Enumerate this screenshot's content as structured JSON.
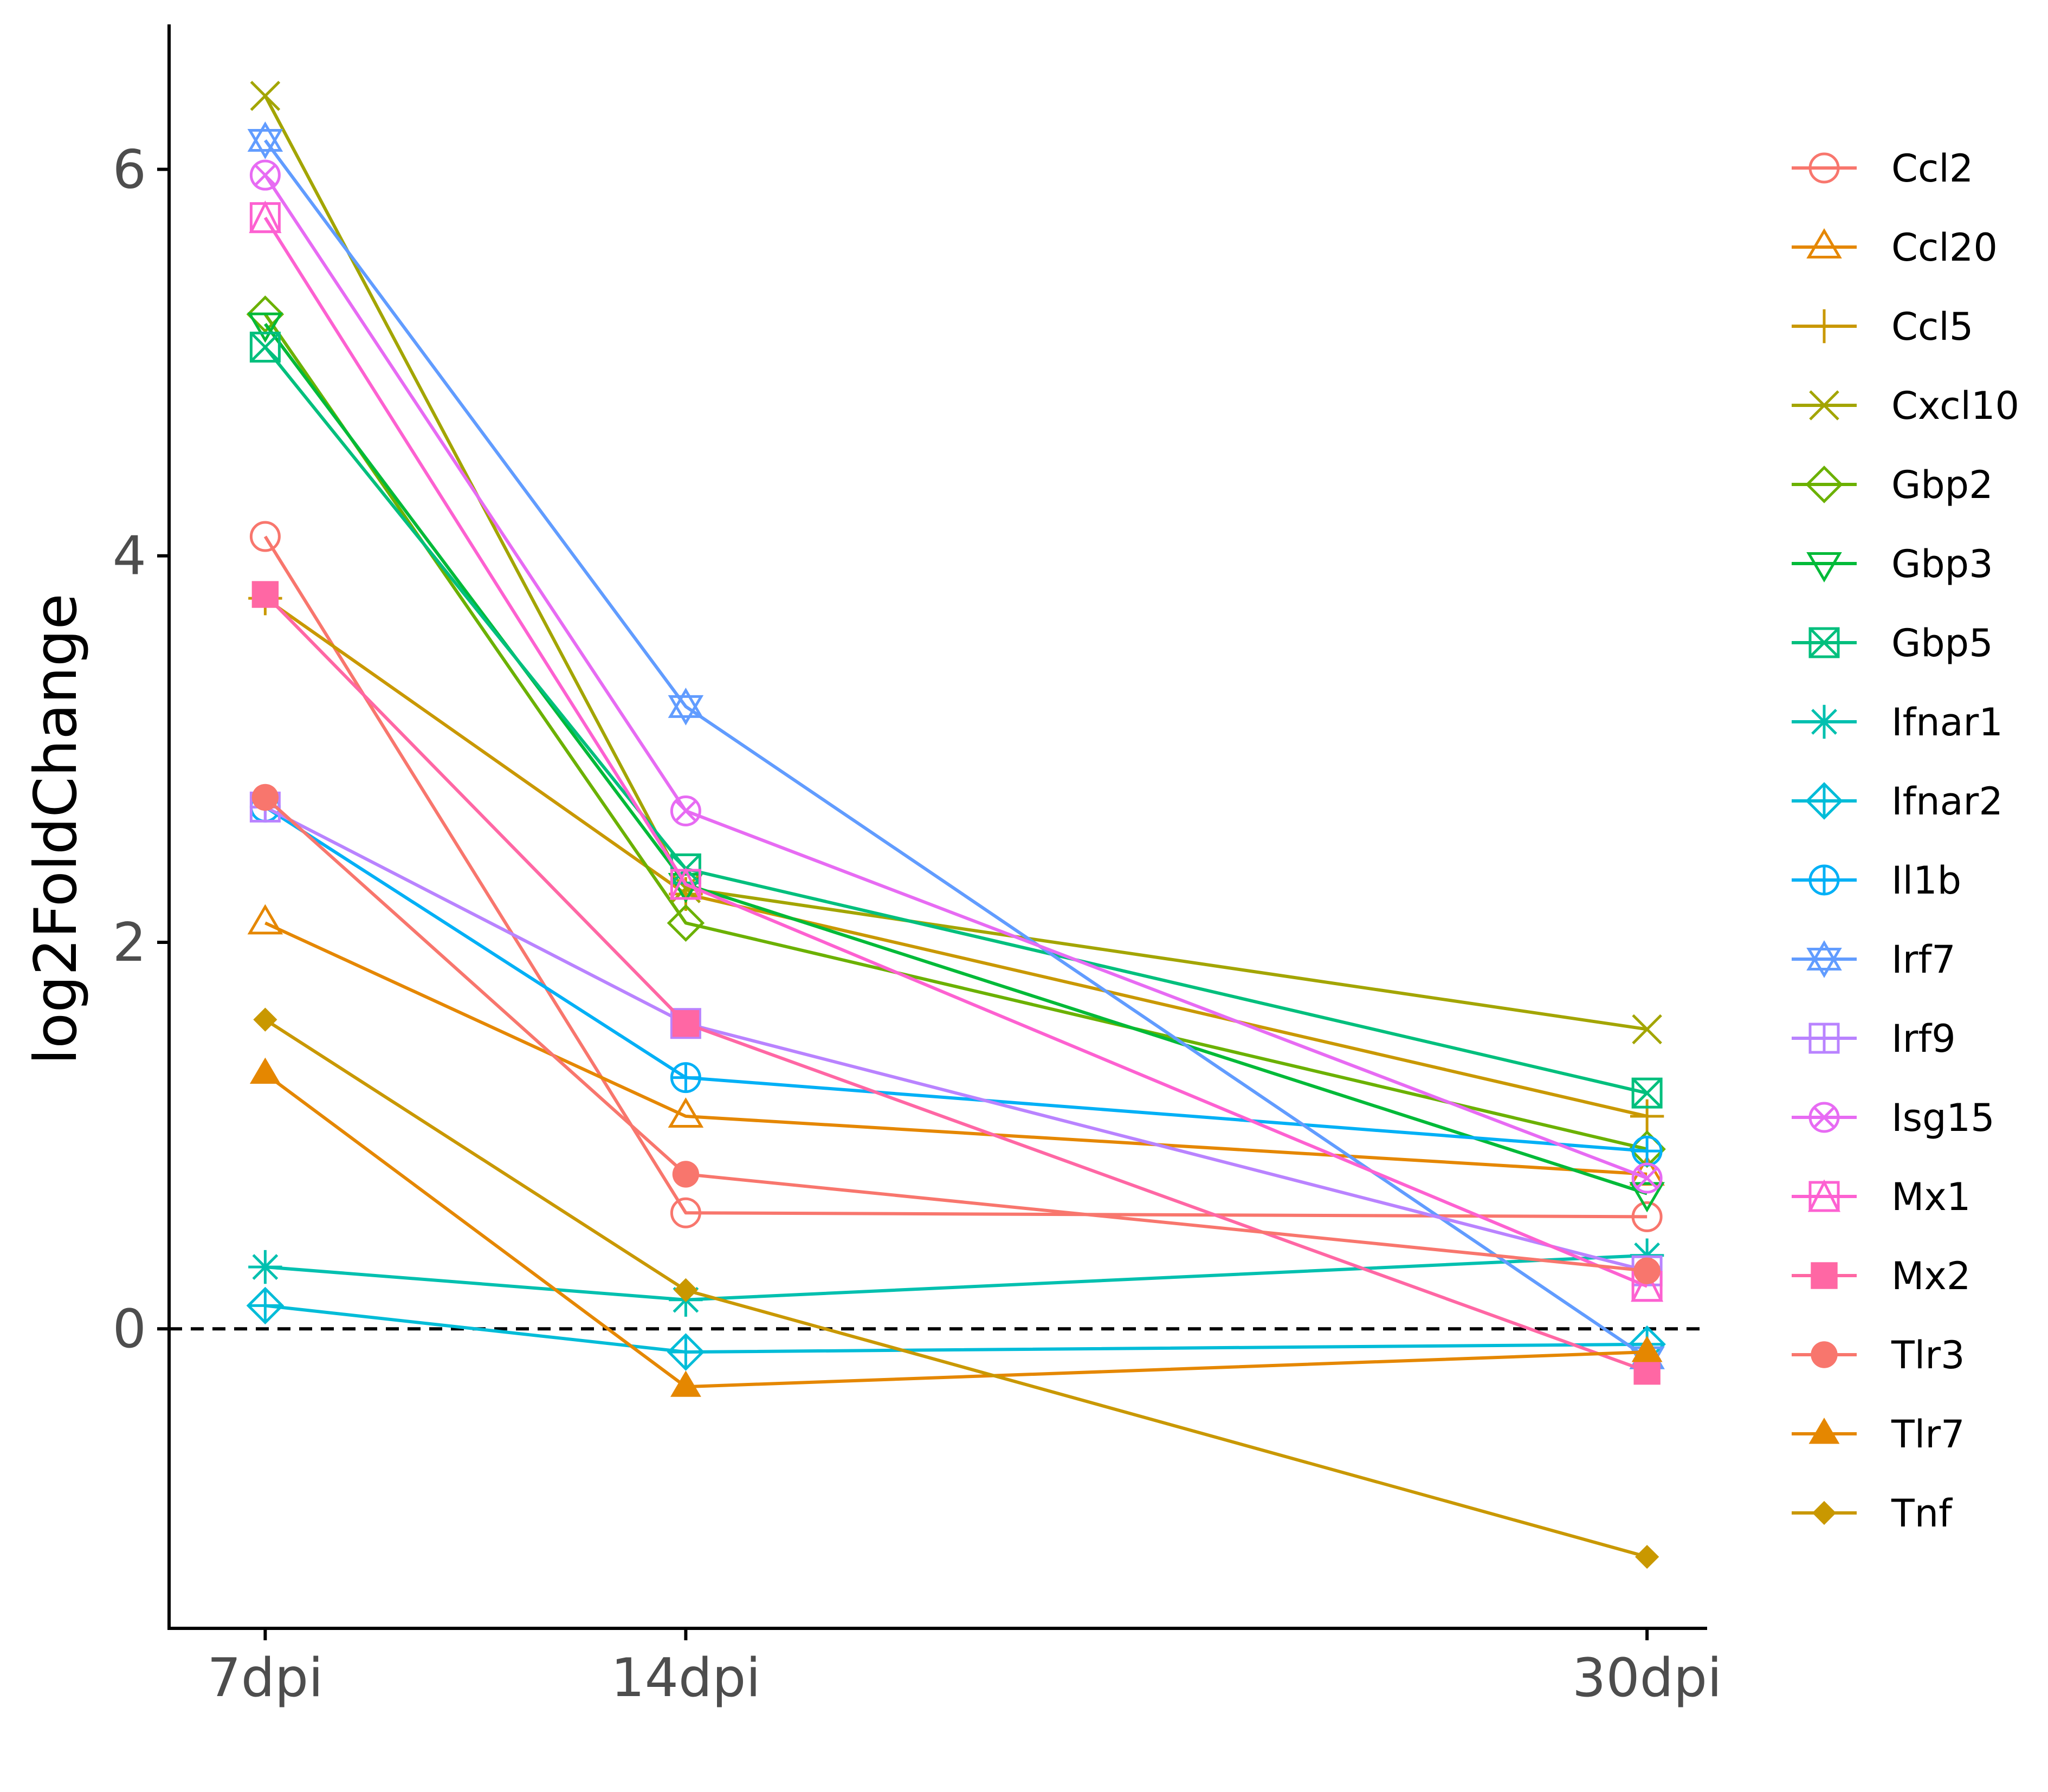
{
  "chart_data": {
    "type": "line",
    "title": "",
    "xlabel": "",
    "ylabel": "log2FoldChange",
    "categories": [
      "7dpi",
      "14dpi",
      "30dpi"
    ],
    "x": [
      7,
      14,
      30
    ],
    "ylim": [
      -1.55,
      6.75
    ],
    "yticks": [
      "0",
      "2",
      "4",
      "6"
    ],
    "ytick_values": [
      0,
      2,
      4,
      6
    ],
    "reference_line": {
      "y": 0,
      "style": "dashed"
    },
    "grid": false,
    "legend_position": "right",
    "series": [
      {
        "name": "Ccl2",
        "color": "#F8766D",
        "shape": "open-circle",
        "values": [
          4.1,
          0.6,
          0.58
        ]
      },
      {
        "name": "Ccl20",
        "color": "#E58700",
        "shape": "open-triangle",
        "values": [
          2.1,
          1.1,
          0.8
        ]
      },
      {
        "name": "Ccl5",
        "color": "#C99800",
        "shape": "plus",
        "values": [
          3.78,
          2.25,
          1.1
        ]
      },
      {
        "name": "Cxcl10",
        "color": "#A3A500",
        "shape": "cross",
        "values": [
          6.38,
          2.28,
          1.55
        ]
      },
      {
        "name": "Gbp2",
        "color": "#6BB100",
        "shape": "open-diamond",
        "values": [
          5.25,
          2.1,
          0.93
        ]
      },
      {
        "name": "Gbp3",
        "color": "#00BA38",
        "shape": "open-triangle-down",
        "values": [
          5.2,
          2.3,
          0.7
        ]
      },
      {
        "name": "Gbp5",
        "color": "#00BF7D",
        "shape": "square-cross",
        "values": [
          5.08,
          2.38,
          1.22
        ]
      },
      {
        "name": "Ifnar1",
        "color": "#00C0AF",
        "shape": "asterisk",
        "values": [
          0.32,
          0.15,
          0.38
        ]
      },
      {
        "name": "Ifnar2",
        "color": "#00BCD8",
        "shape": "diamond-plus",
        "values": [
          0.12,
          -0.12,
          -0.08
        ]
      },
      {
        "name": "Il1b",
        "color": "#00B0F6",
        "shape": "circle-plus",
        "values": [
          2.7,
          1.3,
          0.92
        ]
      },
      {
        "name": "Irf7",
        "color": "#619CFF",
        "shape": "star-of-david",
        "values": [
          6.15,
          3.22,
          -0.15
        ]
      },
      {
        "name": "Irf9",
        "color": "#B983FF",
        "shape": "square-plus",
        "values": [
          2.7,
          1.58,
          0.3
        ]
      },
      {
        "name": "Isg15",
        "color": "#E76BF3",
        "shape": "circle-cross",
        "values": [
          5.97,
          2.68,
          0.78
        ]
      },
      {
        "name": "Mx1",
        "color": "#FD61D1",
        "shape": "square-triangle",
        "values": [
          5.75,
          2.3,
          0.22
        ]
      },
      {
        "name": "Mx2",
        "color": "#FF67A4",
        "shape": "filled-square",
        "values": [
          3.8,
          1.58,
          -0.22
        ]
      },
      {
        "name": "Tlr3",
        "color": "#F8766D",
        "shape": "filled-circle",
        "values": [
          2.75,
          0.8,
          0.3
        ]
      },
      {
        "name": "Tlr7",
        "color": "#E58700",
        "shape": "filled-triangle",
        "values": [
          1.32,
          -0.3,
          -0.12
        ]
      },
      {
        "name": "Tnf",
        "color": "#C99800",
        "shape": "filled-diamond",
        "values": [
          1.6,
          0.2,
          -1.18
        ]
      }
    ]
  }
}
